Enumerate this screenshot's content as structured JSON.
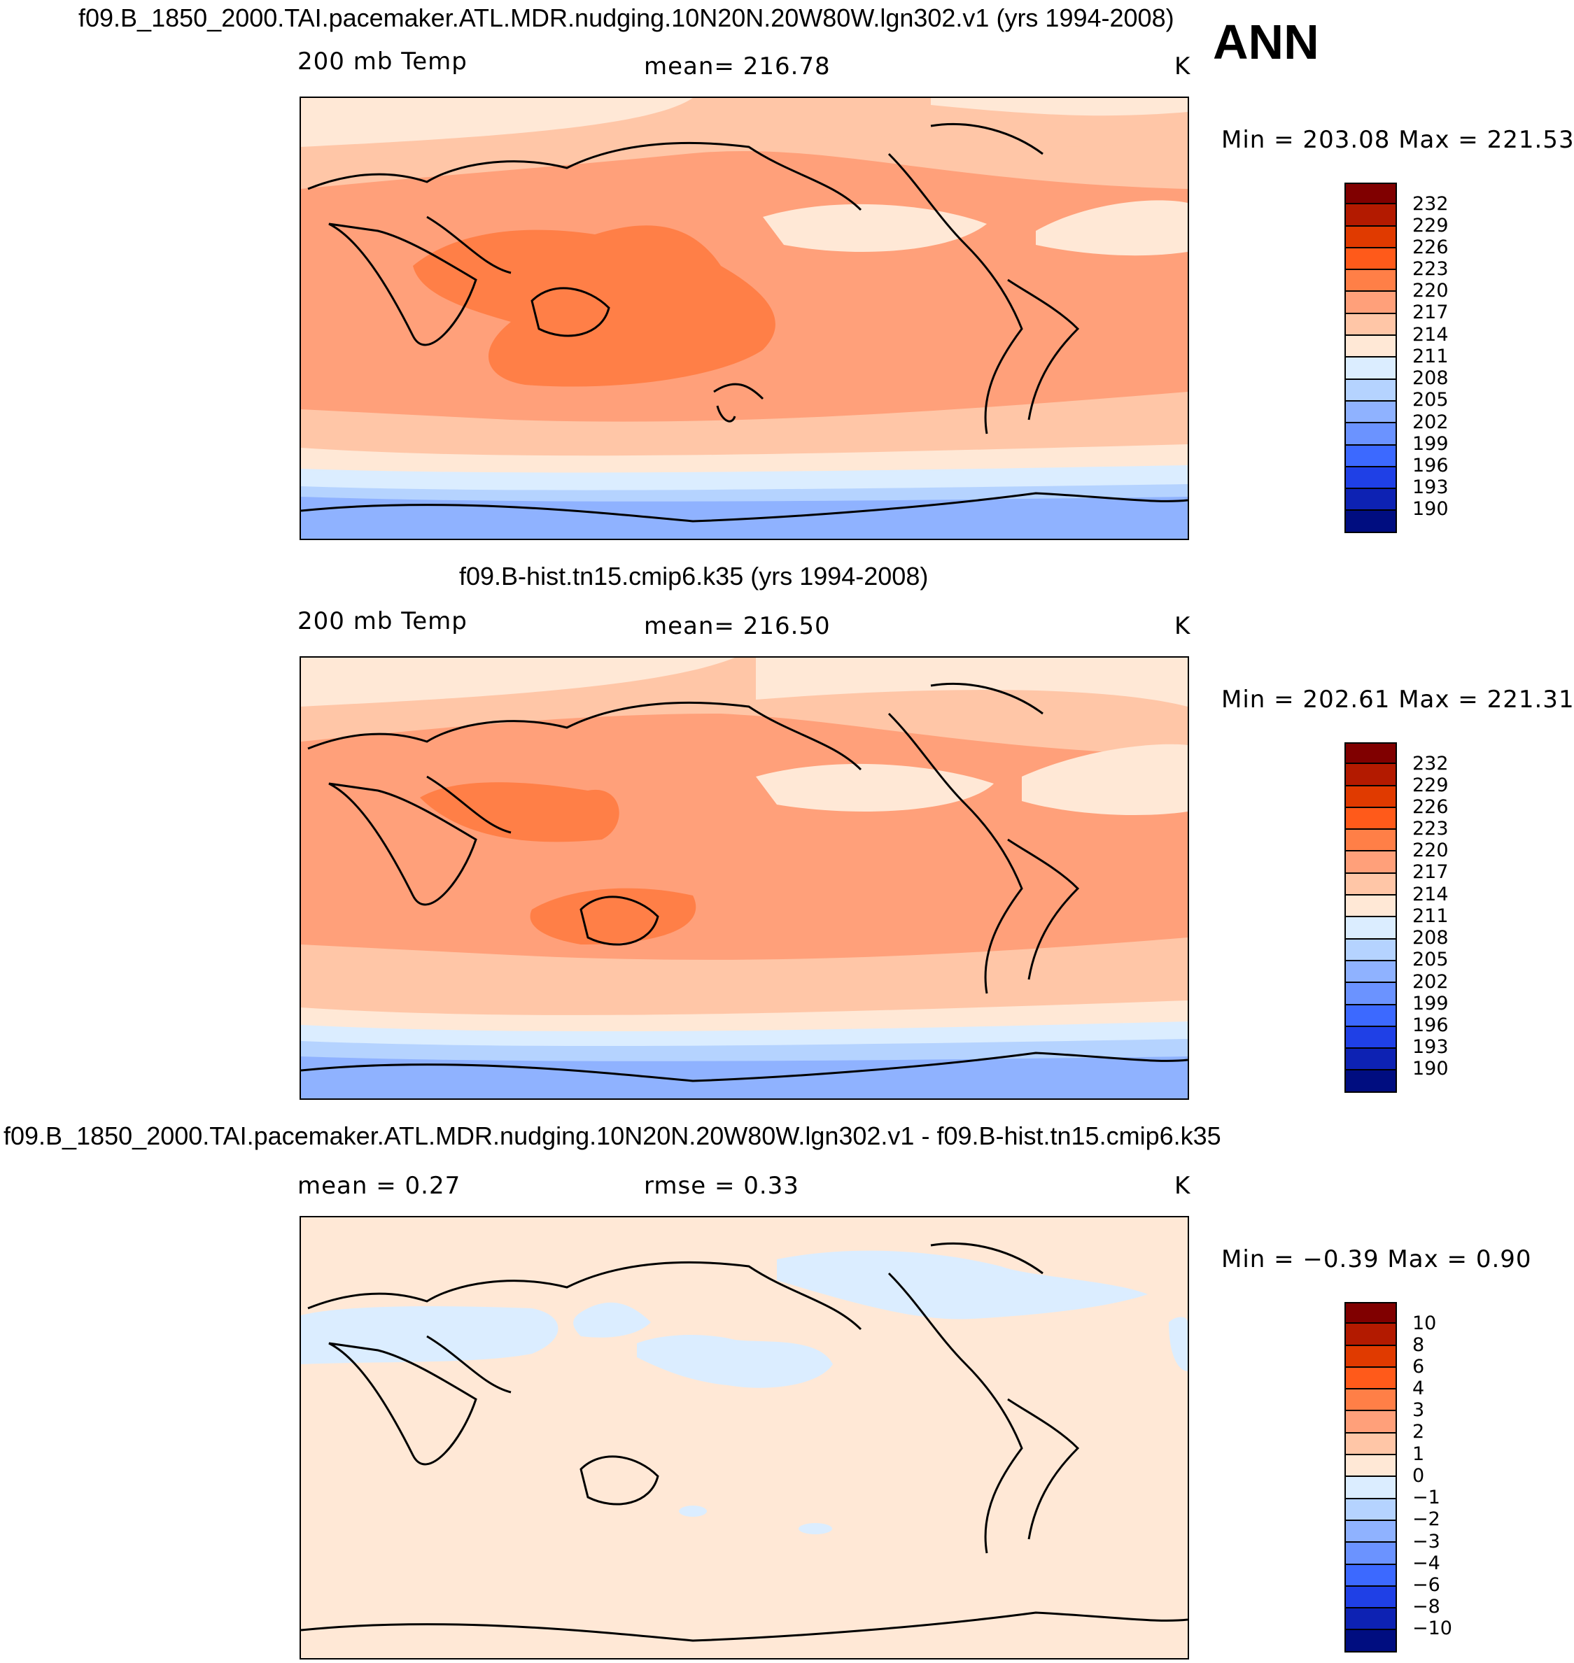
{
  "season": "ANN",
  "panels": [
    {
      "title": "f09.B_1850_2000.TAI.pacemaker.ATL.MDR.nudging.10N20N.20W80W.lgn302.v1 (yrs 1994-2008)",
      "left_label": "200  mb  Temp",
      "center_label": "mean=  216.78",
      "units": "K",
      "minmax": "Min  =  203.08  Max  =  221.53",
      "colorbar_labels": [
        "232",
        "229",
        "226",
        "223",
        "220",
        "217",
        "214",
        "211",
        "208",
        "205",
        "202",
        "199",
        "196",
        "193",
        "190"
      ]
    },
    {
      "title": "f09.B-hist.tn15.cmip6.k35 (yrs 1994-2008)",
      "left_label": "200  mb  Temp",
      "center_label": "mean=  216.50",
      "units": "K",
      "minmax": "Min  =  202.61  Max  =  221.31",
      "colorbar_labels": [
        "232",
        "229",
        "226",
        "223",
        "220",
        "217",
        "214",
        "211",
        "208",
        "205",
        "202",
        "199",
        "196",
        "193",
        "190"
      ]
    },
    {
      "title": "f09.B_1850_2000.TAI.pacemaker.ATL.MDR.nudging.10N20N.20W80W.lgn302.v1 - f09.B-hist.tn15.cmip6.k35",
      "left_label": "mean  =     0.27",
      "center_label": "rmse  =     0.33",
      "units": "K",
      "minmax": "Min  =    −0.39  Max  =     0.90",
      "colorbar_labels": [
        "10",
        "8",
        "6",
        "4",
        "3",
        "2",
        "1",
        "0",
        "−1",
        "−2",
        "−3",
        "−4",
        "−6",
        "−8",
        "−10"
      ]
    }
  ],
  "colors": {
    "scale": [
      "#800000",
      "#b31a00",
      "#e03a00",
      "#ff5a1a",
      "#ff7f47",
      "#ffa07a",
      "#ffc6a7",
      "#ffe8d6",
      "#dbedff",
      "#b5d3ff",
      "#8fb2ff",
      "#6b93ff",
      "#3c69ff",
      "#1f40e6",
      "#0d22b3",
      "#000d80"
    ]
  }
}
